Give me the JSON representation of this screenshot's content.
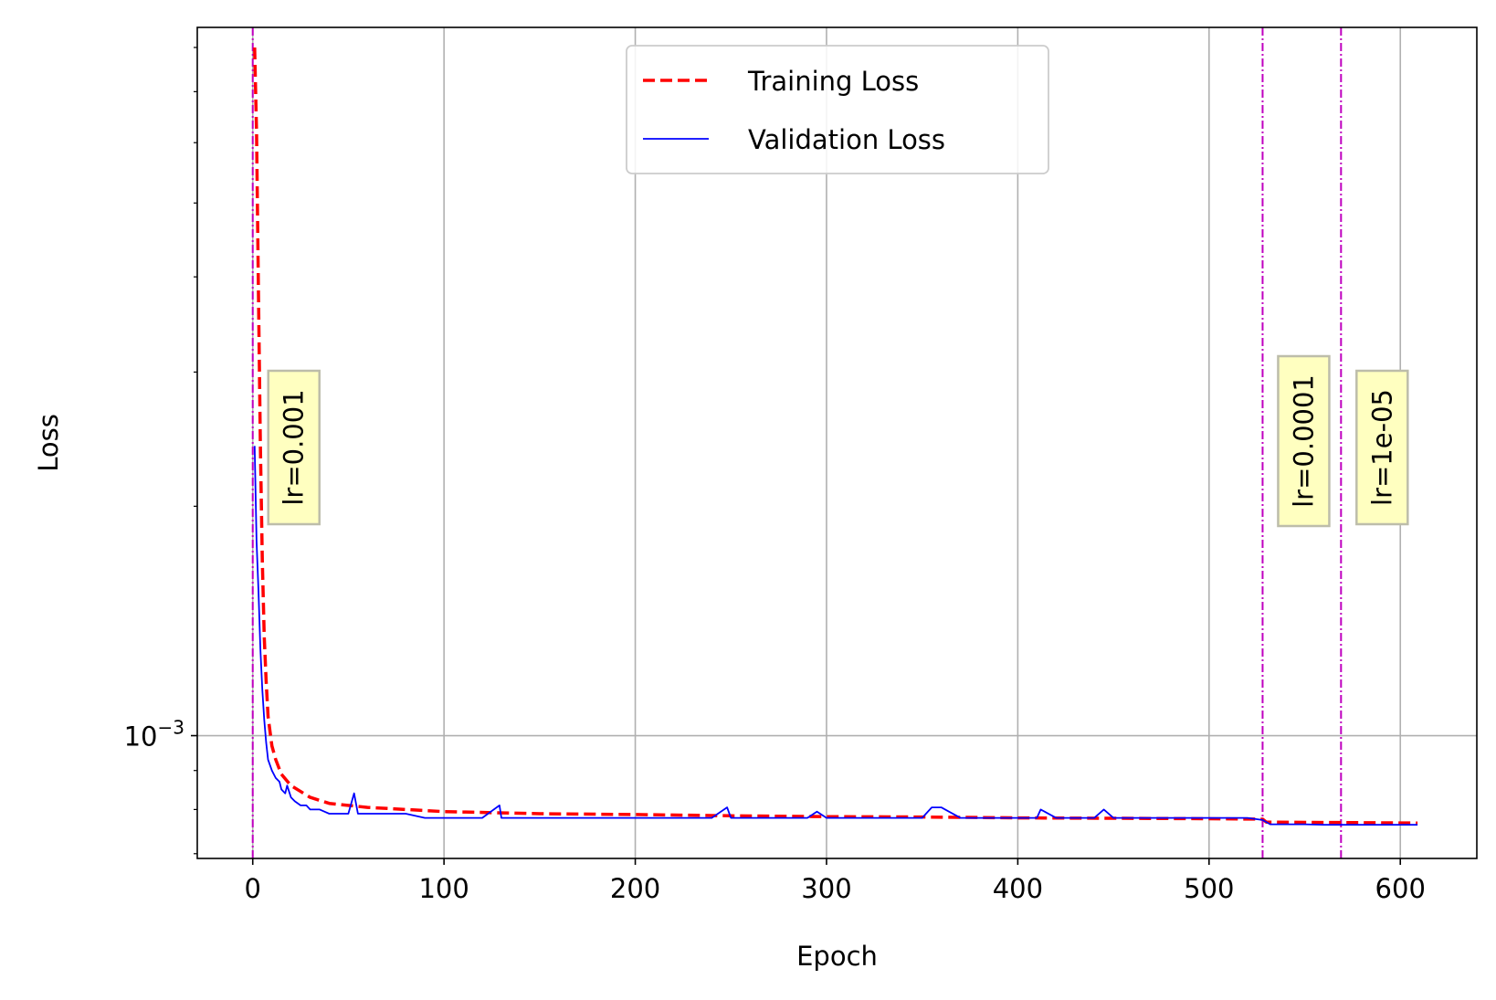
{
  "chart_data": {
    "type": "line",
    "xlabel": "Epoch",
    "ylabel": "Loss",
    "xlim": [
      -29,
      640
    ],
    "ylim": [
      0.00069,
      0.0085
    ],
    "yscale": "log",
    "grid": true,
    "x_ticks": [
      0,
      100,
      200,
      300,
      400,
      500,
      600
    ],
    "x_tick_labels": [
      "0",
      "100",
      "200",
      "300",
      "400",
      "500",
      "600"
    ],
    "y_major_ticks": [
      0.001
    ],
    "y_major_tick_labels": [
      {
        "base": "10",
        "exp": "−3"
      }
    ],
    "y_minor_ticks": [
      0.0007,
      0.0008,
      0.0009,
      0.002,
      0.003,
      0.004,
      0.005,
      0.006,
      0.007,
      0.008
    ],
    "legend": {
      "position": "top-center",
      "entries": [
        {
          "label": "Training Loss",
          "color": "#ff0000",
          "style": "dashed"
        },
        {
          "label": "Validation Loss",
          "color": "#0000ff",
          "style": "solid"
        }
      ]
    },
    "series": [
      {
        "name": "Training Loss",
        "color": "#ff0000",
        "style": "dashed",
        "points": [
          [
            1,
            0.008
          ],
          [
            2,
            0.0062
          ],
          [
            3,
            0.0038
          ],
          [
            4,
            0.0024
          ],
          [
            5,
            0.0017
          ],
          [
            6,
            0.00135
          ],
          [
            7,
            0.00118
          ],
          [
            8,
            0.00106
          ],
          [
            10,
            0.00097
          ],
          [
            12,
            0.00093
          ],
          [
            15,
            0.00089
          ],
          [
            20,
            0.00086
          ],
          [
            30,
            0.00083
          ],
          [
            40,
            0.000815
          ],
          [
            60,
            0.000805
          ],
          [
            80,
            0.0008
          ],
          [
            100,
            0.000795
          ],
          [
            150,
            0.00079
          ],
          [
            200,
            0.000788
          ],
          [
            250,
            0.000785
          ],
          [
            300,
            0.000783
          ],
          [
            350,
            0.000782
          ],
          [
            400,
            0.00078
          ],
          [
            450,
            0.000779
          ],
          [
            500,
            0.000778
          ],
          [
            528,
            0.000777
          ],
          [
            530,
            0.00077
          ],
          [
            570,
            0.000769
          ],
          [
            609,
            0.000768
          ]
        ]
      },
      {
        "name": "Validation Loss",
        "color": "#0000ff",
        "style": "solid",
        "points": [
          [
            1,
            0.0024
          ],
          [
            2,
            0.0018
          ],
          [
            3,
            0.00155
          ],
          [
            4,
            0.0013
          ],
          [
            5,
            0.00115
          ],
          [
            6,
            0.00105
          ],
          [
            7,
            0.00098
          ],
          [
            8,
            0.00093
          ],
          [
            10,
            0.0009
          ],
          [
            12,
            0.00088
          ],
          [
            14,
            0.00087
          ],
          [
            15,
            0.00085
          ],
          [
            17,
            0.00084
          ],
          [
            18,
            0.00086
          ],
          [
            20,
            0.00083
          ],
          [
            22,
            0.00082
          ],
          [
            25,
            0.00081
          ],
          [
            28,
            0.00081
          ],
          [
            30,
            0.0008
          ],
          [
            35,
            0.0008
          ],
          [
            40,
            0.00079
          ],
          [
            45,
            0.00079
          ],
          [
            50,
            0.00079
          ],
          [
            53,
            0.00084
          ],
          [
            55,
            0.00079
          ],
          [
            60,
            0.00079
          ],
          [
            65,
            0.00079
          ],
          [
            70,
            0.00079
          ],
          [
            80,
            0.00079
          ],
          [
            90,
            0.00078
          ],
          [
            100,
            0.00078
          ],
          [
            110,
            0.00078
          ],
          [
            120,
            0.00078
          ],
          [
            129,
            0.00081
          ],
          [
            130,
            0.00078
          ],
          [
            140,
            0.00078
          ],
          [
            150,
            0.00078
          ],
          [
            160,
            0.00078
          ],
          [
            170,
            0.00078
          ],
          [
            180,
            0.00078
          ],
          [
            190,
            0.00078
          ],
          [
            200,
            0.00078
          ],
          [
            210,
            0.00078
          ],
          [
            220,
            0.00078
          ],
          [
            230,
            0.00078
          ],
          [
            240,
            0.00078
          ],
          [
            248,
            0.000805
          ],
          [
            250,
            0.00078
          ],
          [
            260,
            0.00078
          ],
          [
            270,
            0.00078
          ],
          [
            280,
            0.00078
          ],
          [
            290,
            0.00078
          ],
          [
            295,
            0.000795
          ],
          [
            300,
            0.00078
          ],
          [
            310,
            0.00078
          ],
          [
            320,
            0.00078
          ],
          [
            330,
            0.00078
          ],
          [
            340,
            0.00078
          ],
          [
            350,
            0.00078
          ],
          [
            355,
            0.000805
          ],
          [
            360,
            0.000805
          ],
          [
            370,
            0.00078
          ],
          [
            380,
            0.00078
          ],
          [
            390,
            0.00078
          ],
          [
            400,
            0.00078
          ],
          [
            410,
            0.00078
          ],
          [
            412,
            0.0008
          ],
          [
            420,
            0.00078
          ],
          [
            430,
            0.00078
          ],
          [
            440,
            0.00078
          ],
          [
            445,
            0.0008
          ],
          [
            450,
            0.00078
          ],
          [
            460,
            0.00078
          ],
          [
            470,
            0.00078
          ],
          [
            480,
            0.00078
          ],
          [
            490,
            0.00078
          ],
          [
            500,
            0.00078
          ],
          [
            510,
            0.00078
          ],
          [
            520,
            0.00078
          ],
          [
            528,
            0.000775
          ],
          [
            532,
            0.000765
          ],
          [
            540,
            0.000765
          ],
          [
            550,
            0.000765
          ],
          [
            560,
            0.000764
          ],
          [
            570,
            0.000764
          ],
          [
            580,
            0.000764
          ],
          [
            590,
            0.000764
          ],
          [
            600,
            0.000764
          ],
          [
            609,
            0.000764
          ]
        ]
      }
    ],
    "vlines": [
      {
        "x": 0,
        "label": "lr=0.001",
        "color": "#bf00bf"
      },
      {
        "x": 528,
        "label": "lr=0.0001",
        "color": "#bf00bf"
      },
      {
        "x": 569,
        "label": "lr=1e-05",
        "color": "#bf00bf"
      }
    ]
  }
}
